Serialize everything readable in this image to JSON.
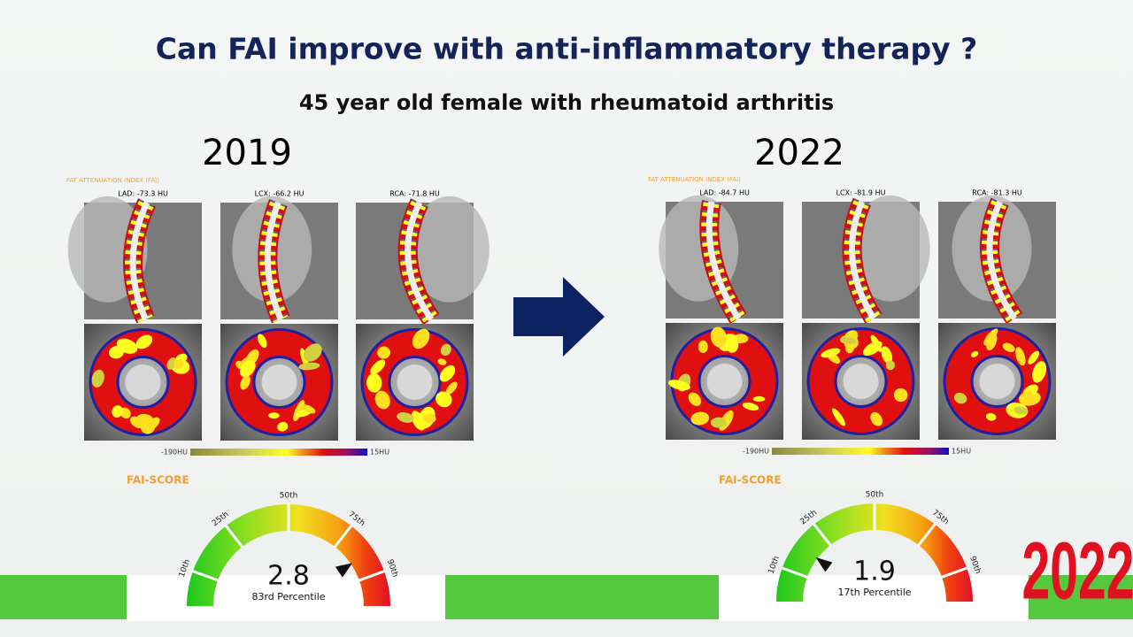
{
  "slide": {
    "title": "Can FAI improve with anti-inflammatory therapy ?",
    "subtitle": "45 year old female with rheumatoid arthritis",
    "logo": "2022"
  },
  "panels": [
    {
      "year": "2019",
      "section_label": "FAT ATTENUATION INDEX (FAI)",
      "vessels": [
        "LAD: -73.3 HU",
        "LCX: -66.2 HU",
        "RCA: -71.8 HU"
      ],
      "scale_min": "-190HU",
      "scale_max": "15HU",
      "score_label": "FAI-SCORE",
      "gauge_ticks": [
        "10th",
        "25th",
        "50th",
        "75th",
        "90th"
      ],
      "score": 2.8,
      "percentile": "83rd Percentile"
    },
    {
      "year": "2022",
      "section_label": "FAT ATTENUATION INDEX (FAI)",
      "vessels": [
        "LAD: -84.7 HU",
        "LCX: -81.9 HU",
        "RCA: -81.3 HU"
      ],
      "scale_min": "-190HU",
      "scale_max": "15HU",
      "score_label": "FAI-SCORE",
      "gauge_ticks": [
        "10th",
        "25th",
        "50th",
        "75th",
        "90th"
      ],
      "score": 1.9,
      "percentile": "17th Percentile"
    }
  ]
}
